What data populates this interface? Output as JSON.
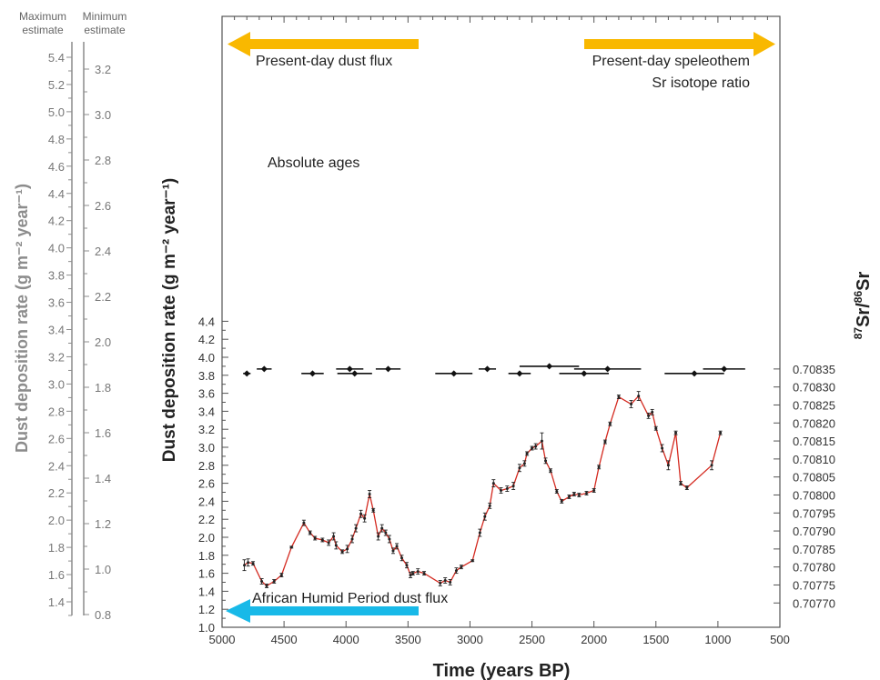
{
  "chart_data": {
    "type": "line",
    "xlabel": "Time (years BP)",
    "ylabel": "Dust deposition rate (g m⁻² year⁻¹)",
    "ylabel_right": "87Sr/86Sr",
    "xlim": [
      5000,
      500
    ],
    "ylim": [
      1.0,
      4.5
    ],
    "x_ticks": [
      5000,
      4500,
      4000,
      3500,
      3000,
      2500,
      2000,
      1500,
      1000,
      500
    ],
    "y_ticks": [
      1.0,
      1.2,
      1.4,
      1.6,
      1.8,
      2.0,
      2.2,
      2.4,
      2.6,
      2.8,
      3.0,
      3.2,
      3.4,
      3.6,
      3.8,
      4.0,
      4.2,
      4.4
    ],
    "right_axis": {
      "label": "87Sr/86Sr",
      "ticks": [
        "0.70770",
        "0.70775",
        "0.70780",
        "0.70785",
        "0.70790",
        "0.70795",
        "0.70800",
        "0.70805",
        "0.70810",
        "0.70815",
        "0.70820",
        "0.70825",
        "0.70830",
        "0.70835"
      ],
      "tick_dust_values": [
        1.27,
        1.47,
        1.67,
        1.87,
        2.07,
        2.27,
        2.47,
        2.67,
        2.87,
        3.07,
        3.27,
        3.47,
        3.67,
        3.87
      ]
    },
    "left_scales": {
      "title": "Dust deposition rate (g m⁻² year⁻¹)",
      "maximum_label": "Maximum estimate",
      "minimum_label": "Minimum estimate",
      "maximum_ticks": [
        "1.4",
        "1.6",
        "1.8",
        "2.0",
        "2.2",
        "2.4",
        "2.6",
        "2.8",
        "3.0",
        "3.2",
        "3.4",
        "3.6",
        "3.8",
        "4.0",
        "4.2",
        "4.4",
        "4.6",
        "4.8",
        "5.0",
        "5.2",
        "5.4"
      ],
      "minimum_ticks": [
        "0.8",
        "1.0",
        "1.2",
        "1.4",
        "1.6",
        "1.8",
        "2.0",
        "2.2",
        "2.4",
        "2.6",
        "2.8",
        "3.0",
        "3.2"
      ]
    },
    "series": [
      {
        "color": "#d42a20",
        "x": [
          4820,
          4790,
          4750,
          4680,
          4640,
          4580,
          4520,
          4440,
          4340,
          4290,
          4250,
          4190,
          4140,
          4100,
          4080,
          4030,
          3990,
          3950,
          3920,
          3880,
          3850,
          3810,
          3780,
          3740,
          3710,
          3680,
          3650,
          3620,
          3590,
          3550,
          3510,
          3480,
          3460,
          3420,
          3370,
          3240,
          3200,
          3160,
          3110,
          3070,
          2980,
          2920,
          2880,
          2840,
          2810,
          2750,
          2700,
          2650,
          2600,
          2560,
          2540,
          2500,
          2470,
          2420,
          2390,
          2350,
          2300,
          2260,
          2200,
          2160,
          2120,
          2060,
          2000,
          1960,
          1910,
          1870,
          1800,
          1700,
          1640,
          1560,
          1530,
          1500,
          1450,
          1400,
          1340,
          1300,
          1250,
          1050,
          980
        ],
        "y": [
          1.69,
          1.72,
          1.71,
          1.51,
          1.46,
          1.51,
          1.58,
          1.89,
          2.16,
          2.05,
          1.99,
          1.97,
          1.94,
          2.01,
          1.91,
          1.84,
          1.87,
          1.98,
          2.1,
          2.26,
          2.21,
          2.48,
          2.3,
          2.01,
          2.1,
          2.05,
          1.98,
          1.85,
          1.9,
          1.77,
          1.69,
          1.58,
          1.6,
          1.62,
          1.6,
          1.49,
          1.52,
          1.5,
          1.63,
          1.67,
          1.74,
          2.05,
          2.23,
          2.35,
          2.6,
          2.52,
          2.54,
          2.57,
          2.77,
          2.82,
          2.93,
          2.99,
          3.01,
          3.07,
          2.85,
          2.74,
          2.51,
          2.4,
          2.45,
          2.48,
          2.47,
          2.49,
          2.52,
          2.78,
          3.06,
          3.26,
          3.56,
          3.48,
          3.57,
          3.35,
          3.39,
          3.21,
          2.99,
          2.8,
          3.16,
          2.6,
          2.55,
          2.8,
          3.16
        ],
        "errors": [
          0.06,
          0.04,
          0.02,
          0.03,
          0.02,
          0.02,
          0.02,
          0.01,
          0.03,
          0.02,
          0.02,
          0.02,
          0.03,
          0.04,
          0.04,
          0.02,
          0.04,
          0.04,
          0.04,
          0.04,
          0.04,
          0.04,
          0.02,
          0.04,
          0.04,
          0.03,
          0.04,
          0.03,
          0.03,
          0.03,
          0.03,
          0.03,
          0.02,
          0.03,
          0.02,
          0.03,
          0.03,
          0.03,
          0.03,
          0.02,
          0.01,
          0.04,
          0.04,
          0.03,
          0.04,
          0.03,
          0.03,
          0.04,
          0.04,
          0.03,
          0.02,
          0.02,
          0.03,
          0.09,
          0.03,
          0.02,
          0.02,
          0.02,
          0.02,
          0.02,
          0.02,
          0.02,
          0.02,
          0.02,
          0.02,
          0.02,
          0.02,
          0.04,
          0.05,
          0.03,
          0.03,
          0.02,
          0.04,
          0.05,
          0.02,
          0.02,
          0.02,
          0.05,
          0.02
        ]
      }
    ],
    "absolute_ages": {
      "label": "Absolute ages",
      "points": [
        {
          "x": 4800,
          "y": 3.82,
          "err": 30
        },
        {
          "x": 4660,
          "y": 3.87,
          "err": 60
        },
        {
          "x": 4270,
          "y": 3.82,
          "err": 90
        },
        {
          "x": 3970,
          "y": 3.87,
          "err": 110
        },
        {
          "x": 3930,
          "y": 3.82,
          "err": 140
        },
        {
          "x": 3660,
          "y": 3.87,
          "err": 100
        },
        {
          "x": 3130,
          "y": 3.82,
          "err": 150
        },
        {
          "x": 2860,
          "y": 3.87,
          "err": 70
        },
        {
          "x": 2600,
          "y": 3.82,
          "err": 90
        },
        {
          "x": 2360,
          "y": 3.9,
          "err": 240
        },
        {
          "x": 2080,
          "y": 3.82,
          "err": 200
        },
        {
          "x": 1890,
          "y": 3.87,
          "err": 270
        },
        {
          "x": 1190,
          "y": 3.82,
          "err": 240
        },
        {
          "x": 950,
          "y": 3.87,
          "err": 170
        }
      ]
    },
    "annotations": [
      {
        "text": "Present-day dust flux",
        "color": "#f9b800"
      },
      {
        "text_line1": "Present-day speleothem",
        "text_line2": "Sr isotope ratio",
        "color": "#f9b800"
      },
      {
        "text": "African Humid Period dust flux",
        "color": "#18b9e8"
      }
    ]
  }
}
